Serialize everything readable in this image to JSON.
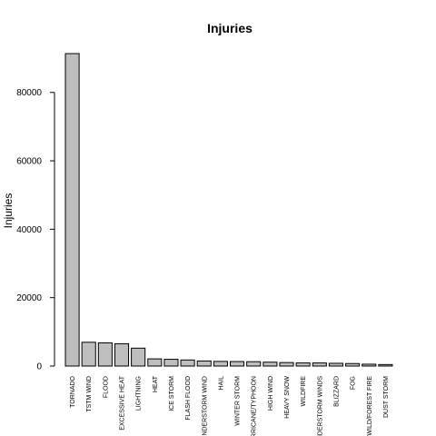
{
  "chart_data": {
    "type": "bar",
    "title": "Injuries",
    "xlabel": "",
    "ylabel": "Injuries",
    "ylim": [
      0,
      91346
    ],
    "yticks": [
      0,
      20000,
      40000,
      60000,
      80000
    ],
    "bar_color": "#bebebe",
    "grid": false,
    "legend": "none",
    "categories": [
      "TORNADO",
      "TSTM WIND",
      "FLOOD",
      "EXCESSIVE HEAT",
      "LIGHTNING",
      "HEAT",
      "ICE STORM",
      "FLASH FLOOD",
      "THUNDERSTORM WIND",
      "HAIL",
      "WINTER STORM",
      "HURRICANE/TYPHOON",
      "HIGH WIND",
      "HEAVY SNOW",
      "WILDFIRE",
      "THUNDERSTORM WINDS",
      "BLIZZARD",
      "FOG",
      "WILD/FOREST FIRE",
      "DUST STORM"
    ],
    "values": [
      91346,
      6957,
      6789,
      6525,
      5230,
      2100,
      1975,
      1777,
      1488,
      1361,
      1321,
      1275,
      1137,
      1021,
      911,
      908,
      805,
      734,
      545,
      440
    ]
  }
}
